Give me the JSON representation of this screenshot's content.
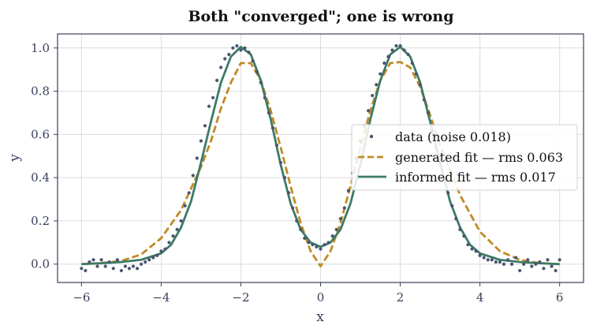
{
  "chart_data": {
    "type": "line",
    "title": "Both \"converged\"; one is wrong",
    "xlabel": "x",
    "ylabel": "y",
    "xlim": [
      -6.6,
      6.6
    ],
    "ylim": [
      -0.085,
      1.065
    ],
    "xticks": [
      -6,
      -4,
      -2,
      0,
      2,
      4,
      6
    ],
    "xtick_labels": [
      "−6",
      "−4",
      "−2",
      "0",
      "2",
      "4",
      "6"
    ],
    "yticks": [
      0.0,
      0.2,
      0.4,
      0.6,
      0.8,
      1.0
    ],
    "ytick_labels": [
      "0.0",
      "0.2",
      "0.4",
      "0.6",
      "0.8",
      "1.0"
    ],
    "grid": true,
    "legend_position": "right",
    "series": [
      {
        "name": "data (noise 0.018)",
        "kind": "scatter",
        "color": "#4a5670",
        "x": [
          -6.0,
          -5.9,
          -5.8,
          -5.7,
          -5.6,
          -5.5,
          -5.4,
          -5.3,
          -5.2,
          -5.1,
          -5.0,
          -4.9,
          -4.8,
          -4.7,
          -4.6,
          -4.5,
          -4.4,
          -4.3,
          -4.2,
          -4.1,
          -4.0,
          -3.9,
          -3.8,
          -3.7,
          -3.6,
          -3.5,
          -3.4,
          -3.3,
          -3.2,
          -3.1,
          -3.0,
          -2.9,
          -2.8,
          -2.7,
          -2.6,
          -2.5,
          -2.4,
          -2.3,
          -2.2,
          -2.1,
          -2.0,
          -1.9,
          -1.8,
          -1.7,
          -1.6,
          -1.5,
          -1.4,
          -1.3,
          -1.2,
          -1.1,
          -1.0,
          -0.9,
          -0.8,
          -0.7,
          -0.6,
          -0.5,
          -0.4,
          -0.3,
          -0.2,
          -0.1,
          0.0,
          0.1,
          0.2,
          0.3,
          0.4,
          0.5,
          0.6,
          0.7,
          0.8,
          0.9,
          1.0,
          1.1,
          1.2,
          1.3,
          1.4,
          1.5,
          1.6,
          1.7,
          1.8,
          1.9,
          2.0,
          2.1,
          2.2,
          2.3,
          2.4,
          2.5,
          2.6,
          2.7,
          2.8,
          2.9,
          3.0,
          3.1,
          3.2,
          3.3,
          3.4,
          3.5,
          3.6,
          3.7,
          3.8,
          3.9,
          4.0,
          4.1,
          4.2,
          4.3,
          4.4,
          4.5,
          4.6,
          4.7,
          4.8,
          4.9,
          5.0,
          5.1,
          5.2,
          5.3,
          5.4,
          5.5,
          5.6,
          5.7,
          5.8,
          5.9,
          6.0
        ],
        "y": [
          -0.02,
          -0.03,
          0.01,
          0.02,
          -0.01,
          0.02,
          -0.01,
          0.01,
          -0.02,
          0.02,
          -0.03,
          -0.01,
          -0.02,
          -0.01,
          -0.02,
          0.0,
          0.01,
          0.02,
          0.03,
          0.04,
          0.06,
          0.07,
          0.1,
          0.13,
          0.16,
          0.2,
          0.27,
          0.33,
          0.41,
          0.49,
          0.57,
          0.64,
          0.73,
          0.77,
          0.85,
          0.91,
          0.95,
          0.97,
          1.0,
          1.01,
          0.99,
          1.0,
          0.98,
          0.94,
          0.89,
          0.84,
          0.77,
          0.7,
          0.63,
          0.55,
          0.47,
          0.4,
          0.33,
          0.26,
          0.2,
          0.16,
          0.12,
          0.1,
          0.09,
          0.08,
          0.07,
          0.09,
          0.1,
          0.13,
          0.16,
          0.21,
          0.26,
          0.34,
          0.42,
          0.49,
          0.57,
          0.64,
          0.71,
          0.78,
          0.83,
          0.88,
          0.93,
          0.96,
          0.99,
          1.01,
          1.01,
          0.99,
          0.97,
          0.93,
          0.88,
          0.83,
          0.76,
          0.7,
          0.62,
          0.54,
          0.47,
          0.4,
          0.33,
          0.27,
          0.21,
          0.16,
          0.13,
          0.09,
          0.07,
          0.06,
          0.04,
          0.03,
          0.02,
          0.02,
          0.01,
          0.01,
          0.0,
          0.02,
          0.0,
          0.03,
          -0.03,
          0.0,
          0.02,
          -0.01,
          0.0,
          0.01,
          -0.02,
          0.02,
          -0.01,
          -0.03,
          0.02
        ]
      },
      {
        "name": "generated fit — rms 0.063",
        "kind": "line",
        "style": "dashed",
        "color": "#c08a25",
        "x": [
          -6,
          -5.5,
          -5,
          -4.5,
          -4,
          -3.5,
          -3,
          -2.75,
          -2.5,
          -2.25,
          -2,
          -1.75,
          -1.5,
          -1.25,
          -1,
          -0.75,
          -0.5,
          -0.25,
          0,
          0.25,
          0.5,
          0.75,
          1,
          1.25,
          1.5,
          1.75,
          2,
          2.25,
          2.5,
          2.75,
          3,
          3.5,
          4,
          4.5,
          5,
          5.5,
          6
        ],
        "y": [
          0.0,
          0.005,
          0.015,
          0.045,
          0.12,
          0.25,
          0.45,
          0.57,
          0.72,
          0.84,
          0.93,
          0.93,
          0.85,
          0.71,
          0.54,
          0.36,
          0.19,
          0.06,
          -0.01,
          0.06,
          0.19,
          0.36,
          0.54,
          0.71,
          0.85,
          0.93,
          0.935,
          0.91,
          0.82,
          0.69,
          0.55,
          0.32,
          0.15,
          0.06,
          0.02,
          0.005,
          0.0
        ]
      },
      {
        "name": "informed fit — rms 0.017",
        "kind": "line",
        "style": "solid",
        "color": "#3c7a66",
        "x": [
          -6,
          -5.5,
          -5,
          -4.5,
          -4,
          -3.75,
          -3.5,
          -3.25,
          -3,
          -2.75,
          -2.5,
          -2.25,
          -2,
          -1.75,
          -1.5,
          -1.25,
          -1,
          -0.75,
          -0.5,
          -0.25,
          0,
          0.25,
          0.5,
          0.75,
          1,
          1.25,
          1.5,
          1.75,
          2,
          2.25,
          2.5,
          2.75,
          3,
          3.25,
          3.5,
          3.75,
          4,
          4.5,
          5,
          5.5,
          6
        ],
        "y": [
          0.0,
          0.004,
          0.01,
          0.02,
          0.05,
          0.09,
          0.17,
          0.29,
          0.47,
          0.66,
          0.84,
          0.96,
          1.005,
          0.97,
          0.85,
          0.67,
          0.46,
          0.28,
          0.16,
          0.1,
          0.08,
          0.1,
          0.16,
          0.28,
          0.46,
          0.67,
          0.85,
          0.97,
          1.005,
          0.96,
          0.84,
          0.66,
          0.47,
          0.29,
          0.17,
          0.09,
          0.05,
          0.02,
          0.01,
          0.004,
          0.0
        ]
      }
    ]
  }
}
